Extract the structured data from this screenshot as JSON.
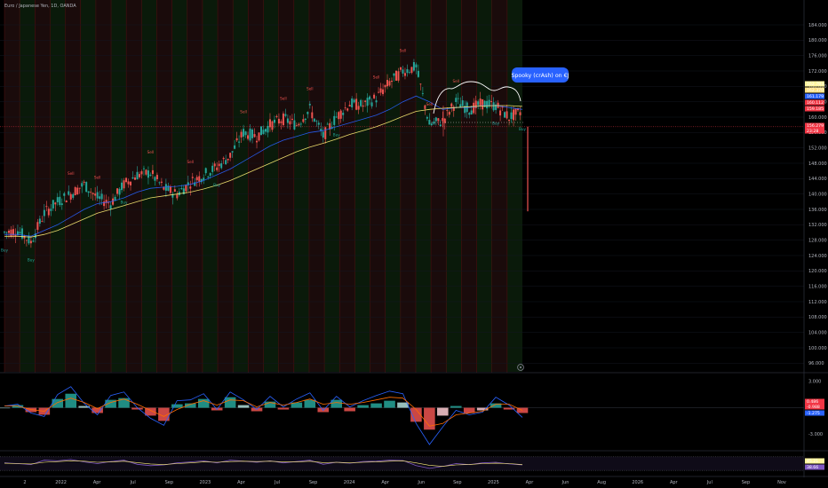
{
  "header": {
    "symbol_title": "Euro / Japanese Yen, 1D, OANDA"
  },
  "annotation": {
    "text": "Spooky (crAsh) on €J"
  },
  "chart_data": [
    {
      "type": "candlestick",
      "title": "Euro / Japanese Yen, 1D, OANDA",
      "price_axis_ticks": [
        "184.000",
        "180.000",
        "176.000",
        "172.000",
        "168.000",
        "164.000",
        "160.000",
        "156.000",
        "152.000",
        "148.000",
        "144.000",
        "140.000",
        "136.000",
        "132.000",
        "128.000",
        "124.000",
        "120.000",
        "116.000",
        "112.000",
        "108.000",
        "104.000",
        "100.000",
        "96.000"
      ],
      "time_axis_ticks": [
        "2",
        "2022",
        "Apr",
        "Jul",
        "Sep",
        "2023",
        "Apr",
        "Jul",
        "Sep",
        "2024",
        "Apr",
        "Jun",
        "Sep",
        "2025",
        "Apr",
        "Jun",
        "Aug",
        "2026",
        "Apr",
        "Jul",
        "Sep",
        "Nov"
      ],
      "ylim": [
        94,
        187
      ],
      "x": [
        "2021-12",
        "2022-01",
        "2022-02",
        "2022-03",
        "2022-04",
        "2022-05",
        "2022-06",
        "2022-07",
        "2022-08",
        "2022-09",
        "2022-10",
        "2022-11",
        "2022-12",
        "2023-01",
        "2023-02",
        "2023-03",
        "2023-04",
        "2023-05",
        "2023-06",
        "2023-07",
        "2023-08",
        "2023-09",
        "2023-10",
        "2023-11",
        "2023-12",
        "2024-01",
        "2024-02",
        "2024-03",
        "2024-04",
        "2024-05",
        "2024-06",
        "2024-07",
        "2024-08",
        "2024-09",
        "2024-10",
        "2024-11",
        "2024-12",
        "2025-01",
        "2025-02",
        "2025-03"
      ],
      "series": [
        {
          "values": [
            130.0,
            130.5,
            127.5,
            135.0,
            138.0,
            140.0,
            142.5,
            139.0,
            137.5,
            142.5,
            145.0,
            145.5,
            141.5,
            140.0,
            143.0,
            145.0,
            147.0,
            150.0,
            156.0,
            155.0,
            158.0,
            159.5,
            158.0,
            162.0,
            155.0,
            160.0,
            163.5,
            163.0,
            165.0,
            169.0,
            172.0,
            173.0,
            158.0,
            159.0,
            164.0,
            162.0,
            163.5,
            163.0,
            160.0,
            161.5
          ]
        },
        {
          "values": [
            129.5,
            129.5,
            129.0,
            130.5,
            132.0,
            134.0,
            136.0,
            137.5,
            138.0,
            139.0,
            140.5,
            141.5,
            141.8,
            142.0,
            142.5,
            143.5,
            145.0,
            146.5,
            148.5,
            150.5,
            152.5,
            154.0,
            155.0,
            156.0,
            156.5,
            157.5,
            158.5,
            159.5,
            160.5,
            162.0,
            164.0,
            165.5,
            164.0,
            162.0,
            162.5,
            162.5,
            163.0,
            163.0,
            162.5,
            162.0
          ]
        },
        {
          "values": [
            129.0,
            129.0,
            128.8,
            129.5,
            130.5,
            132.0,
            133.5,
            135.0,
            136.0,
            137.0,
            138.0,
            139.0,
            139.5,
            140.0,
            140.5,
            141.3,
            142.3,
            143.5,
            145.0,
            146.5,
            148.0,
            149.5,
            151.0,
            152.2,
            153.2,
            154.3,
            155.5,
            156.5,
            157.5,
            158.8,
            160.2,
            161.5,
            162.0,
            162.3,
            162.5,
            162.7,
            162.9,
            163.0,
            163.0,
            162.8
          ]
        }
      ],
      "price_labels": [
        {
          "text": "162.783",
          "color": "#fff59d"
        },
        {
          "text": "162.370",
          "color": "#ffe082"
        },
        {
          "text": "161.179",
          "color": "#2962ff"
        },
        {
          "text": "160.112",
          "color": "#f23645"
        },
        {
          "text": "159.185",
          "color": "#f23645"
        },
        {
          "text": "156.279",
          "color": "#f23645"
        },
        {
          "text": "23:28",
          "color": "#f23645"
        }
      ],
      "signal_labels": [
        "Buy",
        "Buy",
        "Sell",
        "Sell",
        "Buy",
        "Sell",
        "Sell",
        "Buy",
        "Sell",
        "Sell",
        "Sell",
        "Buy",
        "Sell",
        "Sell",
        "Sell",
        "Sell",
        "Buy",
        "Buy"
      ]
    },
    {
      "type": "bar",
      "title": "",
      "y_axis_ticks": [
        "3.000",
        "0.000",
        "-3.000"
      ],
      "ylim": [
        -4.6,
        3.8
      ],
      "values": [
        0.0,
        0.3,
        -0.5,
        -0.8,
        1.0,
        1.6,
        0.2,
        -0.6,
        0.9,
        1.1,
        -0.2,
        -0.9,
        -1.5,
        0.4,
        0.5,
        1.0,
        -0.3,
        1.2,
        0.3,
        -0.4,
        0.7,
        -0.2,
        0.6,
        0.9,
        -0.5,
        0.9,
        -0.4,
        0.3,
        0.5,
        0.8,
        0.6,
        -1.6,
        -2.5,
        -0.9,
        0.2,
        -0.6,
        -0.3,
        0.5,
        -0.2,
        -0.6
      ],
      "series": [
        {
          "values": [
            0.2,
            0.4,
            -0.6,
            -1.0,
            1.5,
            2.4,
            0.5,
            -0.8,
            1.4,
            1.8,
            0.0,
            -1.2,
            -2.0,
            0.8,
            0.9,
            1.6,
            -0.2,
            1.8,
            0.9,
            -0.2,
            1.3,
            0.1,
            1.0,
            1.7,
            -0.3,
            1.3,
            0.1,
            0.8,
            1.4,
            1.9,
            1.6,
            -1.8,
            -4.2,
            -2.2,
            -0.3,
            -0.8,
            -0.5,
            1.2,
            0.3,
            -1.1
          ]
        },
        {
          "values": [
            0.2,
            0.2,
            -0.2,
            -0.4,
            0.6,
            1.1,
            0.6,
            -0.1,
            0.6,
            1.0,
            0.4,
            -0.3,
            -1.0,
            -0.2,
            0.4,
            0.8,
            0.3,
            0.9,
            0.8,
            0.1,
            0.6,
            0.3,
            0.6,
            1.0,
            0.4,
            0.6,
            0.4,
            0.6,
            0.9,
            1.2,
            1.1,
            -0.2,
            -2.1,
            -1.8,
            -0.8,
            -0.6,
            -0.4,
            0.4,
            0.4,
            -0.3
          ]
        }
      ],
      "value_labels": [
        {
          "text": "0.486",
          "color": "#f23645"
        },
        {
          "text": "-0.988",
          "color": "#f23645"
        },
        {
          "text": "-1.275",
          "color": "#2962ff"
        }
      ]
    },
    {
      "type": "line",
      "title": "",
      "values": [
        52,
        50,
        47,
        60,
        58,
        62,
        55,
        50,
        56,
        60,
        48,
        44,
        46,
        52,
        55,
        58,
        52,
        60,
        57,
        54,
        58,
        52,
        56,
        60,
        48,
        54,
        51,
        56,
        57,
        60,
        59,
        44,
        36,
        42,
        50,
        47,
        52,
        54,
        49,
        46
      ],
      "series": [
        {
          "values": [
            51,
            50,
            49,
            54,
            56,
            58,
            57,
            54,
            55,
            57,
            53,
            49,
            47,
            50,
            52,
            55,
            54,
            56,
            57,
            56,
            57,
            55,
            55,
            57,
            53,
            54,
            52,
            54,
            55,
            57,
            58,
            52,
            45,
            42,
            46,
            47,
            50,
            51,
            50,
            47
          ]
        }
      ],
      "value_labels": [
        {
          "text": "45.21",
          "color": "#fff59d"
        },
        {
          "text": "38.66",
          "color": "#7e57c2"
        }
      ]
    }
  ]
}
